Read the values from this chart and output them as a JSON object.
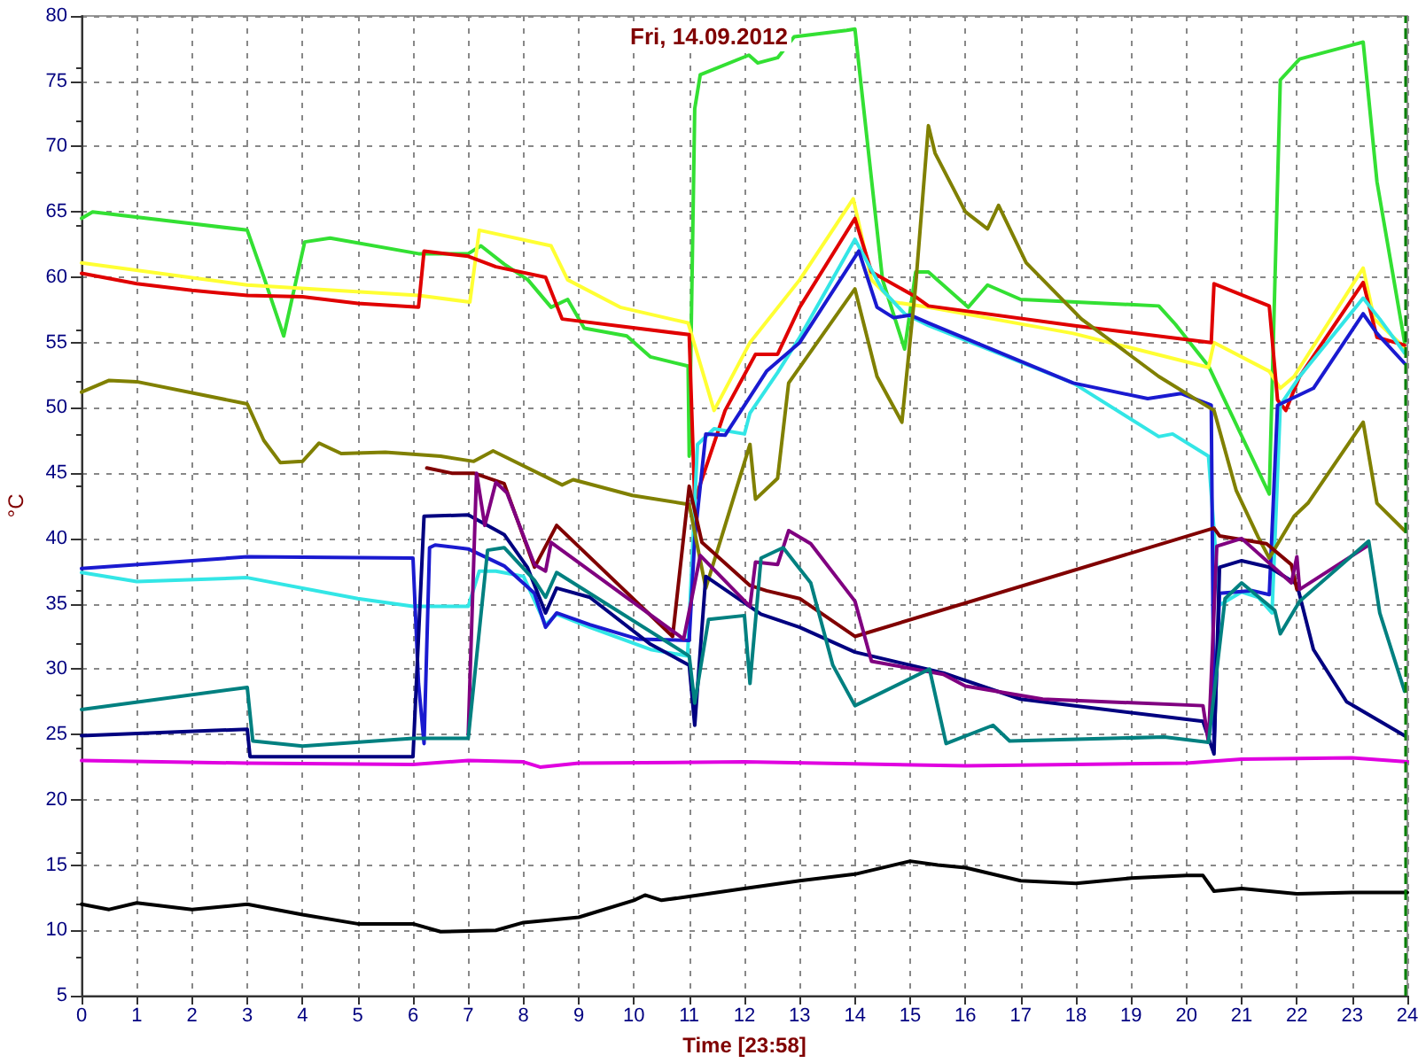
{
  "chart_data": {
    "type": "line",
    "title": "Fri, 14.09.2012",
    "xlabel": "Time [23:58]",
    "ylabel": "°C",
    "xlim": [
      0,
      24
    ],
    "xticks": [
      0,
      1,
      2,
      3,
      4,
      5,
      6,
      7,
      8,
      9,
      10,
      11,
      12,
      13,
      14,
      15,
      16,
      17,
      18,
      19,
      20,
      21,
      22,
      23,
      24
    ],
    "ylim": [
      5,
      80
    ],
    "yticks": [
      5,
      10,
      15,
      20,
      25,
      30,
      35,
      40,
      45,
      50,
      55,
      60,
      65,
      70,
      75,
      80
    ],
    "grid": true,
    "ref_lines": [
      {
        "axis": "x",
        "value": 23.97,
        "color": "#008000",
        "line_style": "dashed"
      }
    ],
    "series": [
      {
        "color": "#33e033",
        "x": [
          0,
          0.2,
          3,
          3.3,
          3.66,
          4.04,
          4.5,
          6.1,
          7,
          7.23,
          7.65,
          8.08,
          8.5,
          8.8,
          9.1,
          9.87,
          10.3,
          10.98,
          11,
          11.1,
          11.2,
          12.08,
          12.24,
          12.6,
          12.9,
          13.85,
          14,
          14.5,
          14.9,
          15.1,
          15.33,
          16.05,
          16.4,
          17,
          19.5,
          19.8,
          20.4,
          21.5,
          21.7,
          22.05,
          23.2,
          23.45,
          23.95
        ],
        "values": [
          64.5,
          65,
          63.6,
          60,
          55.5,
          62.7,
          63,
          61.8,
          61.8,
          62.4,
          61,
          59.8,
          57.7,
          58.3,
          56.1,
          55.5,
          53.9,
          53.2,
          46.3,
          72.9,
          75.5,
          77,
          76.4,
          76.8,
          78.4,
          78.9,
          79,
          59.8,
          54.5,
          60.4,
          60.4,
          57.7,
          59.4,
          58.3,
          57.8,
          56.4,
          53.2,
          43.4,
          75.1,
          76.7,
          78,
          67.3,
          55
        ]
      },
      {
        "color": "#ffff33",
        "x": [
          0,
          3,
          6.1,
          7.03,
          7.2,
          8.5,
          8.8,
          9.75,
          10.98,
          11.45,
          12.1,
          13,
          13.97,
          14.3,
          14.7,
          15.33,
          17.95,
          20.4,
          20.5,
          21.5,
          21.7,
          21.95,
          23.2,
          23.4,
          23.95
        ],
        "values": [
          61.1,
          59.4,
          58.6,
          58.1,
          63.6,
          62.4,
          59.8,
          57.7,
          56.5,
          49.8,
          55,
          59.8,
          66,
          59.8,
          58.1,
          57.7,
          55.7,
          53.1,
          55,
          52.8,
          51.5,
          52.4,
          60.7,
          56.8,
          54.6
        ]
      },
      {
        "color": "#e00000",
        "x": [
          0,
          1,
          2,
          3,
          4,
          5,
          6.1,
          6.2,
          7,
          7.5,
          8.4,
          8.7,
          11,
          11.1,
          11.65,
          12.2,
          12.6,
          13,
          14,
          14.3,
          15.1,
          15.33,
          17.95,
          20.45,
          20.5,
          21.5,
          21.65,
          21.8,
          22.05,
          23.2,
          23.45,
          23.95
        ],
        "values": [
          60.3,
          59.5,
          59,
          58.6,
          58.5,
          58,
          57.7,
          62,
          61.6,
          60.8,
          60,
          56.8,
          55.6,
          42.9,
          49.8,
          54.1,
          54.1,
          57.7,
          64.5,
          60.4,
          58.5,
          57.8,
          56.3,
          55,
          59.5,
          57.8,
          50.6,
          49.8,
          52.4,
          59.6,
          55.4,
          54.8
        ]
      },
      {
        "color": "#33e6e6",
        "x": [
          0,
          1,
          3,
          5,
          6,
          7,
          7.2,
          7.5,
          8,
          8.4,
          8.6,
          9.2,
          10.3,
          10.97,
          11.15,
          11.45,
          12,
          12.1,
          12.6,
          13,
          14,
          14.5,
          14.9,
          15.33,
          17.95,
          19.5,
          19.75,
          20.4,
          20.6,
          21,
          21.3,
          21.55,
          21.7,
          22.05,
          23.2,
          23.5,
          23.95
        ],
        "values": [
          37.4,
          36.7,
          37,
          35.4,
          34.8,
          34.8,
          37.5,
          37.5,
          37.1,
          33.4,
          34.2,
          33.2,
          31.5,
          31,
          47.2,
          48.4,
          48,
          49.6,
          52.7,
          55.4,
          62.9,
          59,
          57.2,
          56.3,
          51.9,
          47.8,
          48,
          46.3,
          34.9,
          35.9,
          35.5,
          34.3,
          50.2,
          52.4,
          58.4,
          56.8,
          54.2
        ]
      },
      {
        "color": "#1a1ad0",
        "x": [
          0,
          3,
          6,
          6.1,
          6.2,
          6.3,
          6.4,
          7,
          7.65,
          8.2,
          8.4,
          8.6,
          9.2,
          10.07,
          11,
          11.1,
          11.3,
          11.65,
          12.4,
          13,
          14.07,
          14.4,
          14.7,
          15,
          15.33,
          17.95,
          19.3,
          19.9,
          20.45,
          20.5,
          20.6,
          21.2,
          21.5,
          21.65,
          22.3,
          23.2,
          23.45,
          23.95
        ],
        "values": [
          37.7,
          38.6,
          38.5,
          28.9,
          24.3,
          39.3,
          39.5,
          39.2,
          37.9,
          35.8,
          33.2,
          34.3,
          33.4,
          32.3,
          32.2,
          40,
          48,
          47.9,
          52.8,
          55,
          62,
          57.7,
          56.9,
          57.1,
          56.5,
          51.9,
          50.7,
          51.1,
          50.2,
          24.4,
          35.8,
          36,
          35.7,
          50.2,
          51.5,
          57.2,
          55.7,
          53.4
        ]
      },
      {
        "color": "#808000",
        "x": [
          0,
          0.5,
          1,
          3,
          3.3,
          3.6,
          4,
          4.3,
          4.7,
          5.5,
          6.5,
          7.1,
          7.45,
          8.7,
          8.9,
          9.97,
          11,
          11.3,
          11.65,
          12.1,
          12.2,
          12.6,
          12.8,
          14,
          14.4,
          14.85,
          15.1,
          15.33,
          15.45,
          16,
          16.4,
          16.6,
          17.1,
          18.1,
          19.5,
          20.5,
          20.9,
          21.3,
          21.5,
          21.95,
          22.2,
          23.2,
          23.45,
          23.95
        ],
        "values": [
          51.2,
          52.1,
          52,
          50.3,
          47.5,
          45.8,
          45.9,
          47.3,
          46.5,
          46.6,
          46.3,
          45.9,
          46.7,
          44.1,
          44.5,
          43.3,
          42.6,
          36.2,
          41,
          47.2,
          43,
          44.6,
          51.9,
          59.1,
          52.4,
          48.9,
          59.4,
          71.6,
          69.5,
          65,
          63.7,
          65.5,
          61.1,
          56.8,
          52.4,
          49.8,
          43.7,
          40.1,
          38.5,
          41.7,
          42.7,
          48.9,
          42.7,
          40.6
        ]
      },
      {
        "color": "#000080",
        "x": [
          0,
          3,
          3.05,
          6,
          6.2,
          7,
          7.65,
          8.07,
          8.4,
          8.6,
          9.2,
          10.3,
          11,
          11.1,
          11.3,
          12.3,
          13,
          14,
          15.6,
          17,
          20.3,
          20.5,
          20.6,
          21,
          21.5,
          22,
          22.3,
          22.9,
          23.95
        ],
        "values": [
          24.9,
          25.4,
          23.3,
          23.3,
          41.7,
          41.8,
          40.3,
          37.8,
          34.3,
          36.2,
          35.5,
          31.9,
          30.3,
          25.7,
          37.1,
          34.2,
          33.2,
          31.3,
          29.7,
          27.7,
          26,
          23.5,
          37.8,
          38.3,
          37.8,
          36.5,
          31.5,
          27.5,
          24.9
        ]
      },
      {
        "color": "#800000",
        "x": [
          6.25,
          6.7,
          7.1,
          7.65,
          8.2,
          8.6,
          10.7,
          11,
          11.23,
          12.1,
          12.4,
          13,
          14,
          20.5,
          20.6,
          21.45,
          21.9,
          22
        ],
        "values": [
          45.4,
          45,
          45,
          44.2,
          37.8,
          41,
          32.5,
          44,
          39.7,
          36.4,
          36,
          35.4,
          32.5,
          40.8,
          40.2,
          39.6,
          38,
          36.1
        ]
      },
      {
        "color": "#800080",
        "x": [
          7,
          7.15,
          7.3,
          7.5,
          7.7,
          8.2,
          8.4,
          8.5,
          10.9,
          11.2,
          12.1,
          12.2,
          12.6,
          12.8,
          13.2,
          14,
          14.3,
          15.6,
          16,
          17.4,
          20.3,
          20.4,
          20.55,
          21,
          21.9,
          22,
          22.05,
          23.3
        ],
        "values": [
          25,
          45,
          41,
          44.3,
          43.5,
          38,
          37.5,
          39.7,
          32.3,
          38.7,
          34.8,
          38.2,
          38,
          40.6,
          39.6,
          35.2,
          30.6,
          29.6,
          28.7,
          27.7,
          27.2,
          24.4,
          39.4,
          40,
          36.6,
          38.6,
          36.1,
          39.5
        ]
      },
      {
        "color": "#008080",
        "x": [
          0,
          3,
          3.1,
          4,
          6,
          7,
          7.35,
          7.65,
          8.2,
          8.4,
          8.6,
          11,
          11.1,
          11.35,
          12,
          12.1,
          12.3,
          12.7,
          13.2,
          13.6,
          14,
          15.35,
          15.65,
          16.5,
          16.8,
          19.6,
          20.4,
          20.7,
          21,
          21.6,
          21.7,
          22.05,
          23.3,
          23.5,
          23.95
        ],
        "values": [
          26.9,
          28.6,
          24.5,
          24.1,
          24.7,
          24.7,
          39.1,
          39.3,
          36.8,
          35.5,
          37.4,
          31,
          27.4,
          33.8,
          34.1,
          28.9,
          38.5,
          39.3,
          36.6,
          30.3,
          27.2,
          30,
          24.3,
          25.7,
          24.5,
          24.8,
          24.4,
          35.4,
          36.6,
          34.5,
          32.7,
          35.2,
          39.8,
          34.3,
          28.3
        ]
      },
      {
        "color": "#e000e0",
        "x": [
          0,
          3,
          6,
          7,
          8,
          8.3,
          9,
          12,
          16,
          20,
          21,
          23,
          24
        ],
        "values": [
          23,
          22.8,
          22.7,
          23,
          22.9,
          22.5,
          22.8,
          22.9,
          22.6,
          22.8,
          23.1,
          23.2,
          22.9
        ]
      },
      {
        "color": "#000000",
        "x": [
          0,
          0.5,
          1,
          2,
          3,
          4,
          5,
          6,
          6.5,
          7.5,
          8,
          9,
          10,
          10.2,
          10.5,
          11,
          12,
          13,
          14,
          15,
          15.5,
          16,
          17,
          18,
          19,
          20,
          20.3,
          20.5,
          21,
          22,
          23,
          24
        ],
        "values": [
          12,
          11.6,
          12.1,
          11.6,
          12,
          11.2,
          10.5,
          10.5,
          9.9,
          10,
          10.6,
          11,
          12.3,
          12.7,
          12.3,
          12.6,
          13.2,
          13.8,
          14.3,
          15.3,
          15,
          14.8,
          13.8,
          13.6,
          14,
          14.2,
          14.2,
          13,
          13.2,
          12.8,
          12.9,
          12.9
        ]
      }
    ]
  }
}
